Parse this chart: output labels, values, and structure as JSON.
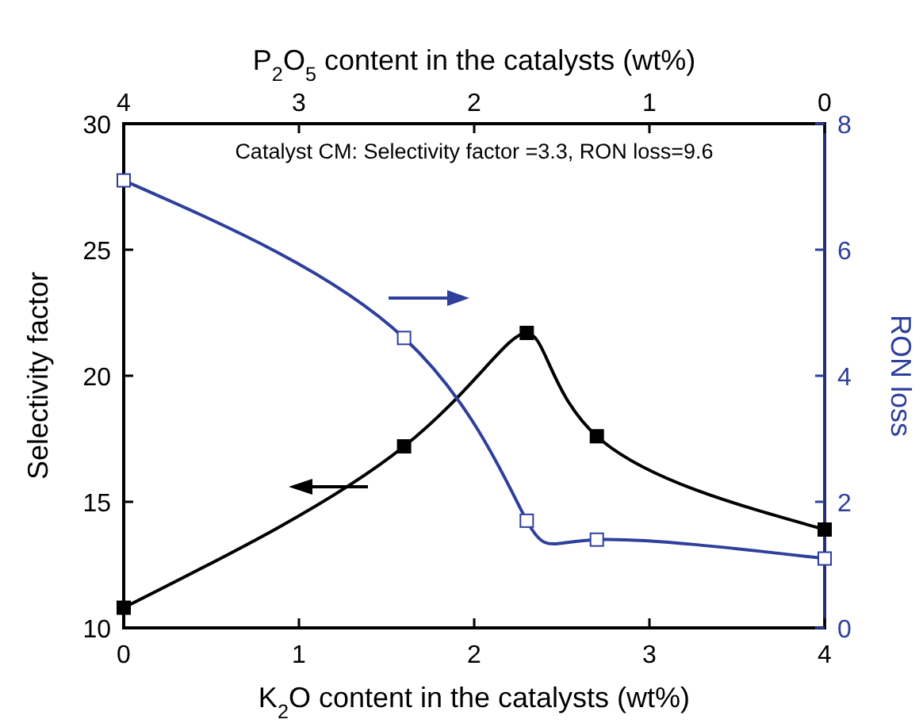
{
  "chart_data": {
    "type": "line",
    "xlabel": "K$_{2}$O content in the catalysts (wt%)",
    "x2label": "P$_{2}$O$_{5}$ content in the catalysts (wt%)",
    "ylabel": "Selectivity factor",
    "y2label": "RON loss",
    "x": [
      0,
      1.6,
      2.3,
      2.7,
      4
    ],
    "xlim": [
      0,
      4
    ],
    "xticks": [
      0,
      1,
      2,
      3,
      4
    ],
    "x2lim": [
      4,
      0
    ],
    "x2ticks": [
      4,
      3,
      2,
      1,
      0
    ],
    "ylim": [
      10,
      30
    ],
    "yticks": [
      10,
      15,
      20,
      25,
      30
    ],
    "y2lim": [
      0,
      8
    ],
    "y2ticks": [
      0,
      2,
      4,
      6,
      8
    ],
    "series": [
      {
        "color": "#000000",
        "values": [
          10.8,
          17.2,
          21.7,
          17.6,
          13.9
        ]
      },
      {
        "color": "#2e3f9c",
        "axis": "y2",
        "values": [
          7.1,
          4.6,
          1.7,
          1.4,
          1.1
        ]
      }
    ],
    "marker": "square",
    "line_style": "solid",
    "grid": false,
    "annotations": [
      "Catalyst CM: Selectivity factor =3.3, RON loss=9.6"
    ]
  }
}
